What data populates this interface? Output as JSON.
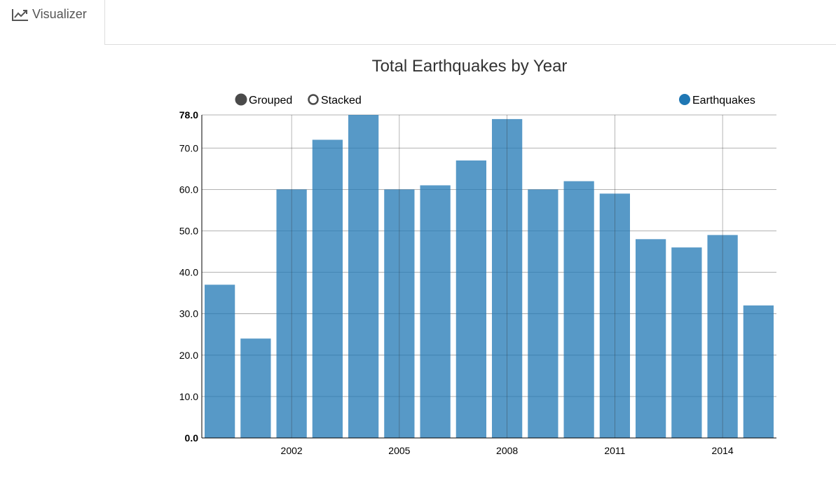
{
  "tab": {
    "label": "Visualizer",
    "icon": "line-chart-icon"
  },
  "controls": {
    "grouped_label": "Grouped",
    "stacked_label": "Stacked",
    "selected": "Grouped"
  },
  "colors": {
    "bar": "#1f77b4",
    "text": "#333333"
  },
  "chart_data": {
    "type": "bar",
    "title": "Total Earthquakes by Year",
    "x": [
      2000,
      2001,
      2002,
      2003,
      2004,
      2005,
      2006,
      2007,
      2008,
      2009,
      2010,
      2011,
      2012,
      2013,
      2014,
      2015
    ],
    "x_tick_labels": [
      "2002",
      "2005",
      "2008",
      "2011",
      "2014"
    ],
    "x_tick_values": [
      2002,
      2005,
      2008,
      2011,
      2014
    ],
    "y_tick_labels": [
      "0.0",
      "10.0",
      "20.0",
      "30.0",
      "40.0",
      "50.0",
      "60.0",
      "70.0",
      "78.0"
    ],
    "y_tick_values": [
      0,
      10,
      20,
      30,
      40,
      50,
      60,
      70,
      78
    ],
    "ylim": [
      0,
      78
    ],
    "grid": true,
    "legend": "top-right",
    "series": [
      {
        "name": "Earthquakes",
        "color": "#1f77b4",
        "values": [
          37,
          24,
          60,
          72,
          78,
          60,
          61,
          67,
          77,
          60,
          62,
          59,
          48,
          46,
          49,
          32
        ]
      }
    ]
  }
}
